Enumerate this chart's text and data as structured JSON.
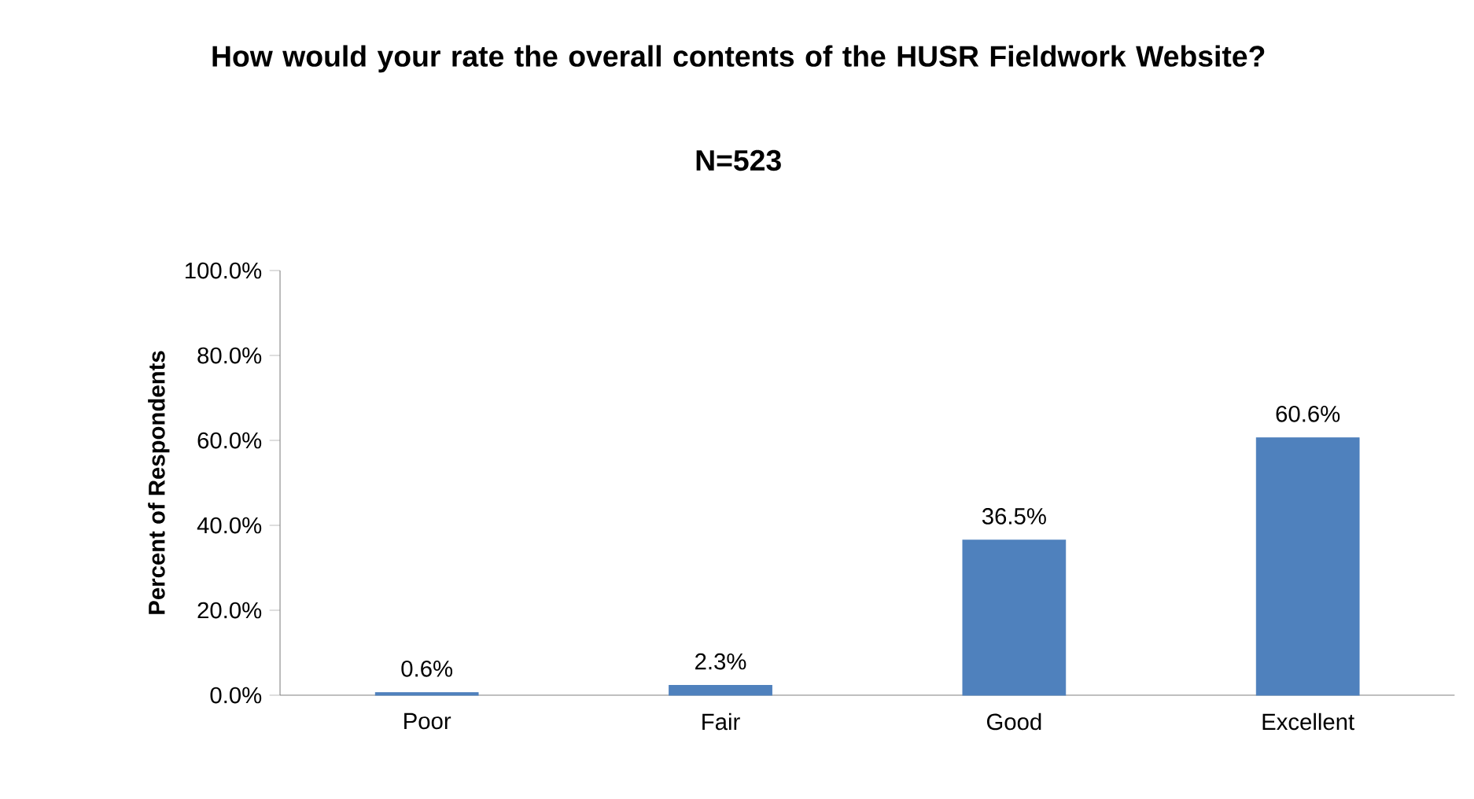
{
  "chart_data": {
    "type": "bar",
    "title": "How would your rate the overall contents of the HUSR Fieldwork Website?",
    "subtitle": "N=523",
    "ylabel": "Percent of Respondents",
    "categories": [
      "Poor",
      "Fair",
      "Good",
      "Excellent"
    ],
    "values": [
      0.6,
      2.3,
      36.5,
      60.6
    ],
    "value_labels": [
      "0.6%",
      "2.3%",
      "36.5%",
      "60.6%"
    ],
    "color": "#4f81bd",
    "ylim": [
      0,
      100
    ],
    "yticks": [
      {
        "value": 0,
        "label": "0.0%"
      },
      {
        "value": 20,
        "label": "20.0%"
      },
      {
        "value": 40,
        "label": "40.0%"
      },
      {
        "value": 60,
        "label": "60.0%"
      },
      {
        "value": 80,
        "label": "80.0%"
      },
      {
        "value": 100,
        "label": "100.0%"
      }
    ],
    "grid": false
  }
}
